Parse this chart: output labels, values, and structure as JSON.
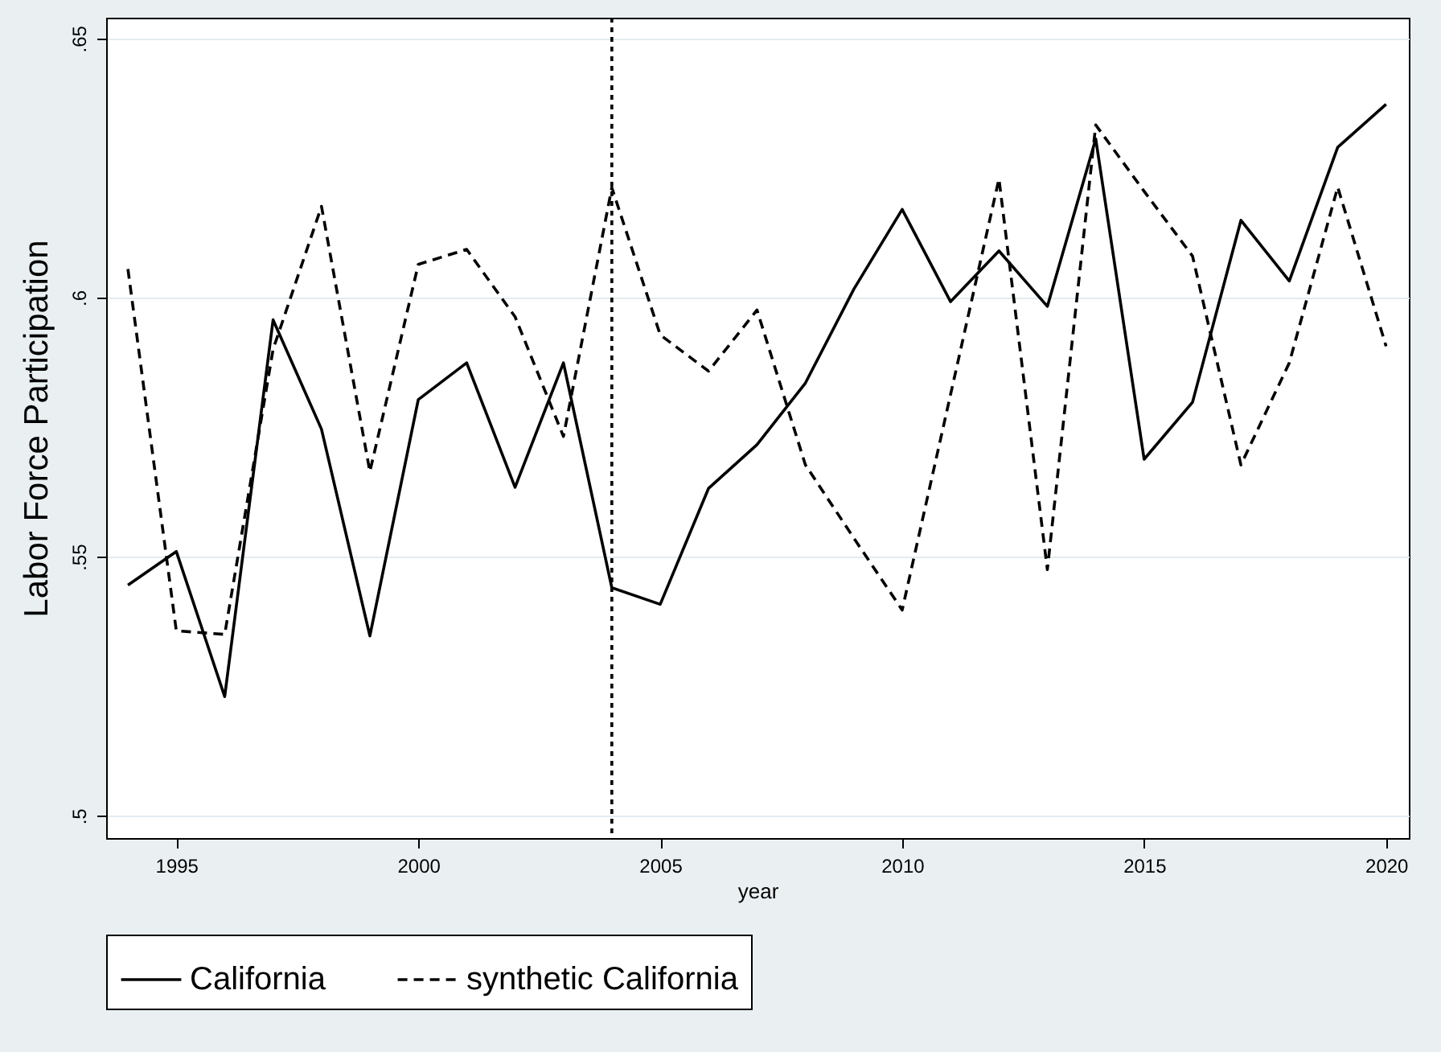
{
  "chart_data": {
    "type": "line",
    "xlabel": "year",
    "ylabel": "Labor Force Participation",
    "x": [
      1994,
      1995,
      1996,
      1997,
      1998,
      1999,
      2000,
      2001,
      2002,
      2003,
      2004,
      2005,
      2006,
      2007,
      2008,
      2009,
      2010,
      2011,
      2012,
      2013,
      2014,
      2015,
      2016,
      2017,
      2018,
      2019,
      2020
    ],
    "series": [
      {
        "name": "California",
        "color": "#000000",
        "line_style": "solid",
        "values": [
          0.5445,
          0.551,
          0.523,
          0.5957,
          0.5746,
          0.5347,
          0.5803,
          0.5874,
          0.5634,
          0.5874,
          0.544,
          0.5408,
          0.5632,
          0.5716,
          0.5835,
          0.6016,
          0.617,
          0.5992,
          0.609,
          0.5983,
          0.6306,
          0.5688,
          0.5798,
          0.6149,
          0.6032,
          0.629,
          0.6373
        ]
      },
      {
        "name": "synthetic California",
        "color": "#000000",
        "line_style": "dashed",
        "values": [
          0.6055,
          0.5357,
          0.535,
          0.59,
          0.6176,
          0.5664,
          0.6064,
          0.6093,
          0.5963,
          0.5732,
          0.6212,
          0.5928,
          0.5858,
          0.5976,
          0.5677,
          0.5536,
          0.5397,
          0.5813,
          0.6229,
          0.5475,
          0.6333,
          0.6205,
          0.608,
          0.5677,
          0.5874,
          0.6213,
          0.5906
        ]
      }
    ],
    "xlim": [
      1993.55,
      2020.47
    ],
    "ylim": [
      0.4957,
      0.654
    ],
    "xticks": [
      1995,
      2000,
      2005,
      2010,
      2015,
      2020
    ],
    "yticks": [
      {
        "value": 0.5,
        "label": ".5"
      },
      {
        "value": 0.55,
        "label": ".55"
      },
      {
        "value": 0.6,
        "label": ".6"
      },
      {
        "value": 0.65,
        "label": ".65"
      }
    ],
    "ref_lines": [
      {
        "axis": "x",
        "value": 2004,
        "color": "#000000",
        "line_style": "dotted"
      }
    ],
    "grid": "y",
    "legend": "bottom"
  }
}
